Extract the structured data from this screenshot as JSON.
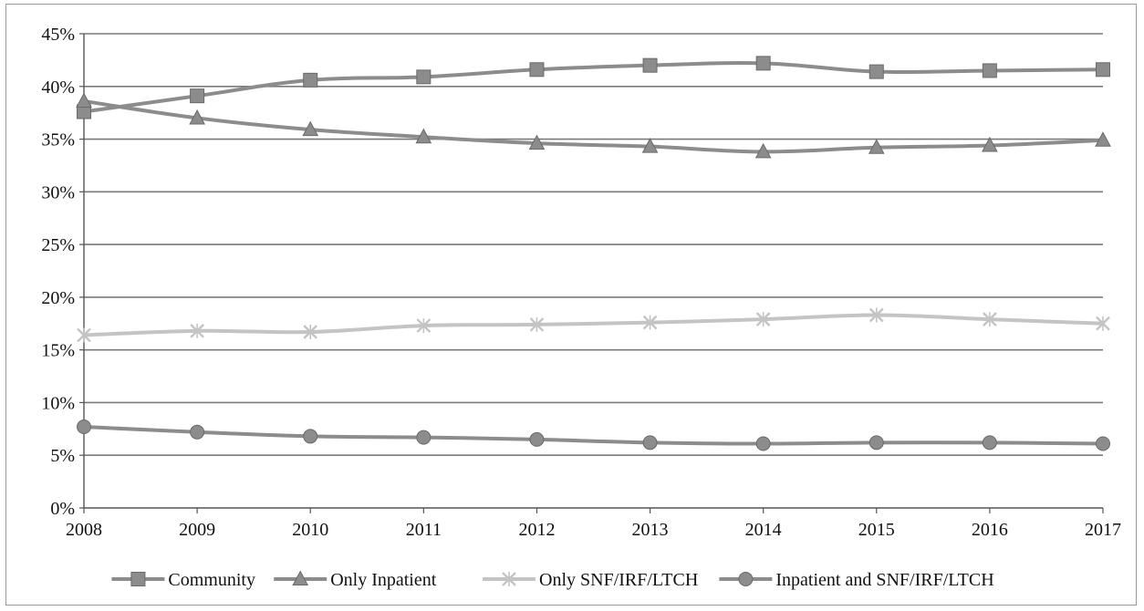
{
  "chart_data": {
    "type": "line",
    "title": "",
    "xlabel": "",
    "ylabel": "",
    "x": [
      "2008",
      "2009",
      "2010",
      "2011",
      "2012",
      "2013",
      "2014",
      "2015",
      "2016",
      "2017"
    ],
    "ylim": [
      0,
      45
    ],
    "y_ticks": [
      "0%",
      "5%",
      "10%",
      "15%",
      "20%",
      "25%",
      "30%",
      "35%",
      "40%",
      "45%"
    ],
    "y_tick_values": [
      0,
      5,
      10,
      15,
      20,
      25,
      30,
      35,
      40,
      45
    ],
    "grid": true,
    "legend_position": "bottom",
    "series": [
      {
        "name": "Community",
        "marker": "square",
        "color": "#8c8c8c",
        "values": [
          37.6,
          39.1,
          40.6,
          40.9,
          41.6,
          42.0,
          42.2,
          41.4,
          41.5,
          41.6
        ]
      },
      {
        "name": "Only Inpatient",
        "marker": "triangle",
        "color": "#8c8c8c",
        "values": [
          38.6,
          37.0,
          35.9,
          35.2,
          34.6,
          34.3,
          33.8,
          34.2,
          34.4,
          34.9
        ]
      },
      {
        "name": "Only SNF/IRF/LTCH",
        "marker": "x",
        "color": "#c4c4c4",
        "values": [
          16.4,
          16.8,
          16.7,
          17.3,
          17.4,
          17.6,
          17.9,
          18.3,
          17.9,
          17.5
        ]
      },
      {
        "name": "Inpatient and SNF/IRF/LTCH",
        "marker": "circle",
        "color": "#8c8c8c",
        "values": [
          7.7,
          7.2,
          6.8,
          6.7,
          6.5,
          6.2,
          6.1,
          6.2,
          6.2,
          6.1
        ]
      }
    ]
  }
}
